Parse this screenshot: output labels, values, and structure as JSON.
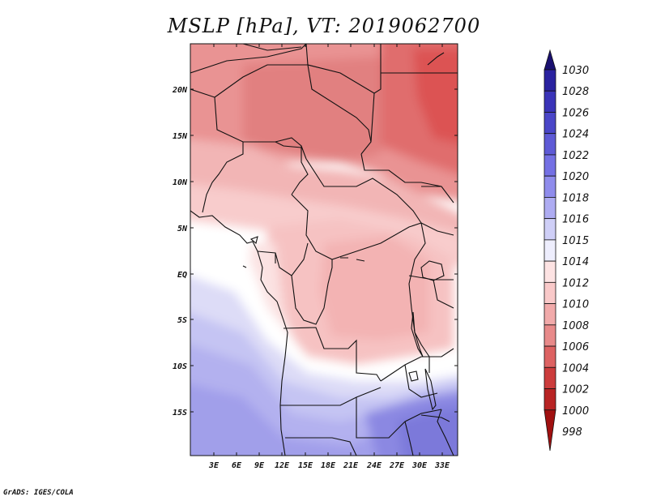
{
  "title": "MSLP [hPa], VT: 2019062700",
  "credit": "GrADS: IGES/COLA",
  "map": {
    "variable": "MSLP",
    "units": "hPa",
    "valid_time": "2019062700",
    "lat_ticks": [
      "20N",
      "15N",
      "10N",
      "5N",
      "EQ",
      "5S",
      "10S",
      "15S"
    ],
    "lon_ticks": [
      "3E",
      "6E",
      "9E",
      "12E",
      "15E",
      "18E",
      "21E",
      "24E",
      "27E",
      "30E",
      "33E"
    ],
    "field_description": "pressure lowest (~1004 hPa) in northeast (Sudan), rising southward to ~1020 hPa over southern Africa"
  },
  "colorbar": {
    "levels": [
      "1030",
      "1028",
      "1026",
      "1024",
      "1022",
      "1020",
      "1018",
      "1016",
      "1015",
      "1014",
      "1012",
      "1010",
      "1008",
      "1006",
      "1004",
      "1002",
      "1000",
      "998"
    ],
    "colors": [
      "#1a1070",
      "#2a22a0",
      "#3a34b8",
      "#4a46c8",
      "#5e5ad6",
      "#7470e4",
      "#8f8cec",
      "#aeacf2",
      "#cfcff7",
      "#eeeefd",
      "#fde3e3",
      "#f9c9c9",
      "#f1aaaa",
      "#e88a8a",
      "#dd6262",
      "#cc3c3c",
      "#b82424",
      "#a01010"
    ]
  }
}
